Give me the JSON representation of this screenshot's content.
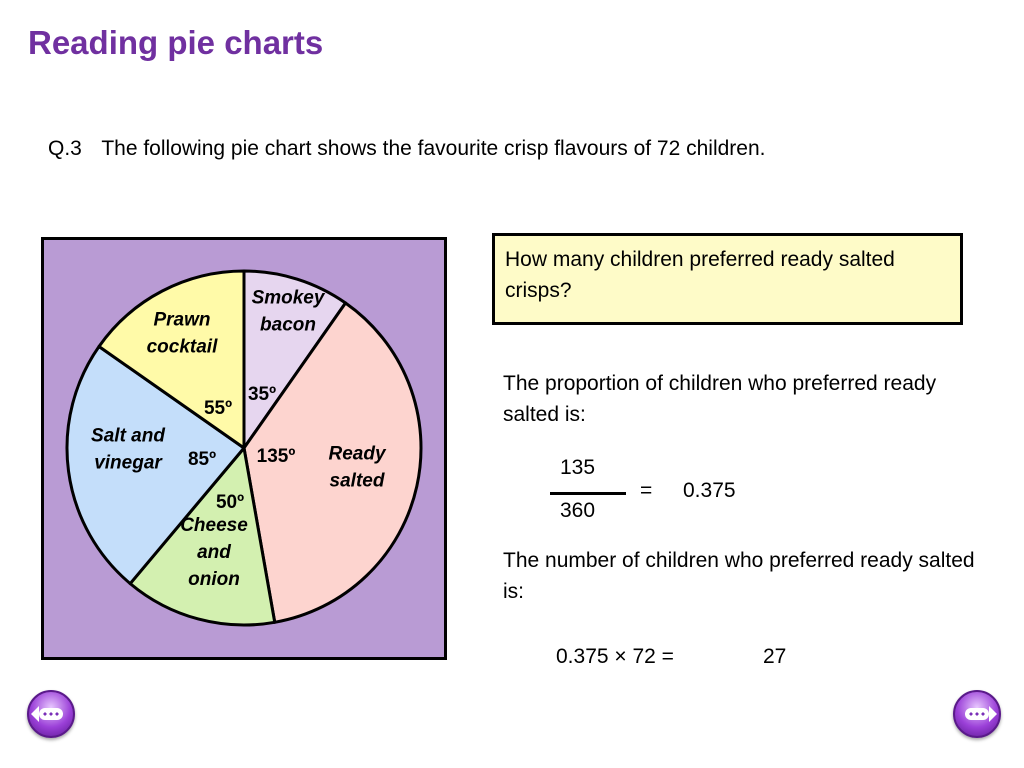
{
  "title": "Reading pie charts",
  "question": {
    "number": "Q.3",
    "text": "The following pie chart shows the favourite crisp flavours of 72 children."
  },
  "chart_data": {
    "type": "pie",
    "total": 72,
    "panel_color": "#b99bd4",
    "slices": [
      {
        "name_lines": [
          "Smokey",
          "bacon"
        ],
        "angle": 35,
        "angle_label": "35º",
        "color": "#e6d6ef"
      },
      {
        "name_lines": [
          "Ready",
          "salted"
        ],
        "angle": 135,
        "angle_label": "135º",
        "color": "#fdd4cf"
      },
      {
        "name_lines": [
          "Cheese",
          "and",
          "onion"
        ],
        "angle": 50,
        "angle_label": "50º",
        "color": "#d3f0b0"
      },
      {
        "name_lines": [
          "Salt and",
          "vinegar"
        ],
        "angle": 85,
        "angle_label": "85º",
        "color": "#c4defa"
      },
      {
        "name_lines": [
          "Prawn",
          "cocktail"
        ],
        "angle": 55,
        "angle_label": "55º",
        "color": "#fffaa8"
      }
    ]
  },
  "ask": {
    "text": "How many children preferred ready salted crisps?",
    "background": "#fefbc8"
  },
  "solution": {
    "proportion_text": "The proportion of children who preferred ready salted is:",
    "numerator": "135",
    "denominator": "360",
    "equals": "=",
    "result": "0.375",
    "number_text": "The number of children who preferred ready salted is:",
    "calculation": "0.375 × 72 =",
    "answer": "27"
  },
  "navigation": {
    "prev_icon": "prev-arrow-icon",
    "next_icon": "next-arrow-icon"
  },
  "accent_color": "#7030a0"
}
